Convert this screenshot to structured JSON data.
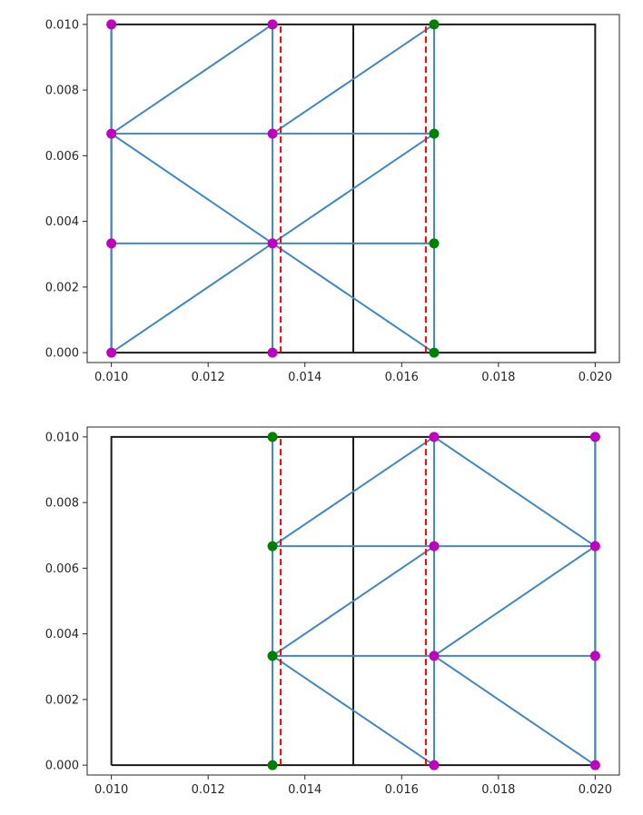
{
  "chart_data": [
    {
      "type": "line",
      "xlim": [
        0.0095,
        0.0205
      ],
      "ylim": [
        -0.0003,
        0.0103
      ],
      "xticks": [
        "0.010",
        "0.012",
        "0.014",
        "0.016",
        "0.018",
        "0.020"
      ],
      "yticks": [
        "0.000",
        "0.002",
        "0.004",
        "0.006",
        "0.008",
        "0.010"
      ],
      "xtick_values": [
        0.01,
        0.012,
        0.014,
        0.016,
        0.018,
        0.02
      ],
      "ytick_values": [
        0.0,
        0.002,
        0.004,
        0.006,
        0.008,
        0.01
      ],
      "grid": false,
      "outline": [
        [
          0.01,
          0.0
        ],
        [
          0.02,
          0.0
        ],
        [
          0.02,
          0.01
        ],
        [
          0.01,
          0.01
        ],
        [
          0.01,
          0.0
        ]
      ],
      "interface_line": [
        [
          0.015,
          0.0
        ],
        [
          0.015,
          0.01
        ]
      ],
      "dashed_lines": [
        [
          [
            0.0135,
            0.0
          ],
          [
            0.0135,
            0.01
          ]
        ],
        [
          [
            0.0165,
            0.0
          ],
          [
            0.0165,
            0.01
          ]
        ]
      ],
      "mesh_edges": [
        [
          [
            0.01,
            0.0
          ],
          [
            0.01,
            0.01
          ]
        ],
        [
          [
            0.01333,
            0.0
          ],
          [
            0.01333,
            0.01
          ]
        ],
        [
          [
            0.01667,
            0.0
          ],
          [
            0.01667,
            0.01
          ]
        ],
        [
          [
            0.01,
            0.00667
          ],
          [
            0.01667,
            0.00667
          ]
        ],
        [
          [
            0.01,
            0.00333
          ],
          [
            0.01667,
            0.00333
          ]
        ],
        [
          [
            0.01,
            0.0
          ],
          [
            0.01333,
            0.00333
          ]
        ],
        [
          [
            0.01,
            0.00667
          ],
          [
            0.01333,
            0.01
          ]
        ],
        [
          [
            0.01,
            0.00667
          ],
          [
            0.01333,
            0.00333
          ]
        ],
        [
          [
            0.01333,
            0.00333
          ],
          [
            0.01667,
            0.00667
          ]
        ],
        [
          [
            0.01333,
            0.00667
          ],
          [
            0.01667,
            0.01
          ]
        ],
        [
          [
            0.01333,
            0.00333
          ],
          [
            0.01667,
            0.0
          ]
        ]
      ],
      "magenta_points": [
        [
          0.01,
          0.0
        ],
        [
          0.01,
          0.00333
        ],
        [
          0.01,
          0.00667
        ],
        [
          0.01,
          0.01
        ],
        [
          0.01333,
          0.0
        ],
        [
          0.01333,
          0.00333
        ],
        [
          0.01333,
          0.00667
        ],
        [
          0.01333,
          0.01
        ]
      ],
      "green_points": [
        [
          0.01667,
          0.0
        ],
        [
          0.01667,
          0.00333
        ],
        [
          0.01667,
          0.00667
        ],
        [
          0.01667,
          0.01
        ]
      ]
    },
    {
      "type": "line",
      "xlim": [
        0.0095,
        0.0205
      ],
      "ylim": [
        -0.0003,
        0.0103
      ],
      "xticks": [
        "0.010",
        "0.012",
        "0.014",
        "0.016",
        "0.018",
        "0.020"
      ],
      "yticks": [
        "0.000",
        "0.002",
        "0.004",
        "0.006",
        "0.008",
        "0.010"
      ],
      "xtick_values": [
        0.01,
        0.012,
        0.014,
        0.016,
        0.018,
        0.02
      ],
      "ytick_values": [
        0.0,
        0.002,
        0.004,
        0.006,
        0.008,
        0.01
      ],
      "grid": false,
      "outline": [
        [
          0.01,
          0.0
        ],
        [
          0.02,
          0.0
        ],
        [
          0.02,
          0.01
        ],
        [
          0.01,
          0.01
        ],
        [
          0.01,
          0.0
        ]
      ],
      "interface_line": [
        [
          0.015,
          0.0
        ],
        [
          0.015,
          0.01
        ]
      ],
      "dashed_lines": [
        [
          [
            0.0135,
            0.0
          ],
          [
            0.0135,
            0.01
          ]
        ],
        [
          [
            0.0165,
            0.0
          ],
          [
            0.0165,
            0.01
          ]
        ]
      ],
      "mesh_edges": [
        [
          [
            0.01333,
            0.0
          ],
          [
            0.01333,
            0.01
          ]
        ],
        [
          [
            0.01667,
            0.0
          ],
          [
            0.01667,
            0.01
          ]
        ],
        [
          [
            0.02,
            0.0
          ],
          [
            0.02,
            0.01
          ]
        ],
        [
          [
            0.01333,
            0.00667
          ],
          [
            0.02,
            0.00667
          ]
        ],
        [
          [
            0.01333,
            0.00333
          ],
          [
            0.02,
            0.00333
          ]
        ],
        [
          [
            0.01333,
            0.00667
          ],
          [
            0.01667,
            0.01
          ]
        ],
        [
          [
            0.01333,
            0.00333
          ],
          [
            0.01667,
            0.00667
          ]
        ],
        [
          [
            0.01333,
            0.00333
          ],
          [
            0.01667,
            0.0
          ]
        ],
        [
          [
            0.01667,
            0.01
          ],
          [
            0.02,
            0.00667
          ]
        ],
        [
          [
            0.01667,
            0.00333
          ],
          [
            0.02,
            0.00667
          ]
        ],
        [
          [
            0.01667,
            0.00333
          ],
          [
            0.02,
            0.0
          ]
        ]
      ],
      "magenta_points": [
        [
          0.01667,
          0.0
        ],
        [
          0.01667,
          0.00333
        ],
        [
          0.01667,
          0.00667
        ],
        [
          0.01667,
          0.01
        ],
        [
          0.02,
          0.0
        ],
        [
          0.02,
          0.00333
        ],
        [
          0.02,
          0.00667
        ],
        [
          0.02,
          0.01
        ]
      ],
      "green_points": [
        [
          0.01333,
          0.0
        ],
        [
          0.01333,
          0.00333
        ],
        [
          0.01333,
          0.00667
        ],
        [
          0.01333,
          0.01
        ]
      ]
    }
  ],
  "colors": {
    "mesh": "#3f88c5",
    "outline": "#1a1a1a",
    "dashed": "#ff0000",
    "magenta_points": "#c000c0",
    "green_points": "#008000",
    "axes": "#262626"
  }
}
